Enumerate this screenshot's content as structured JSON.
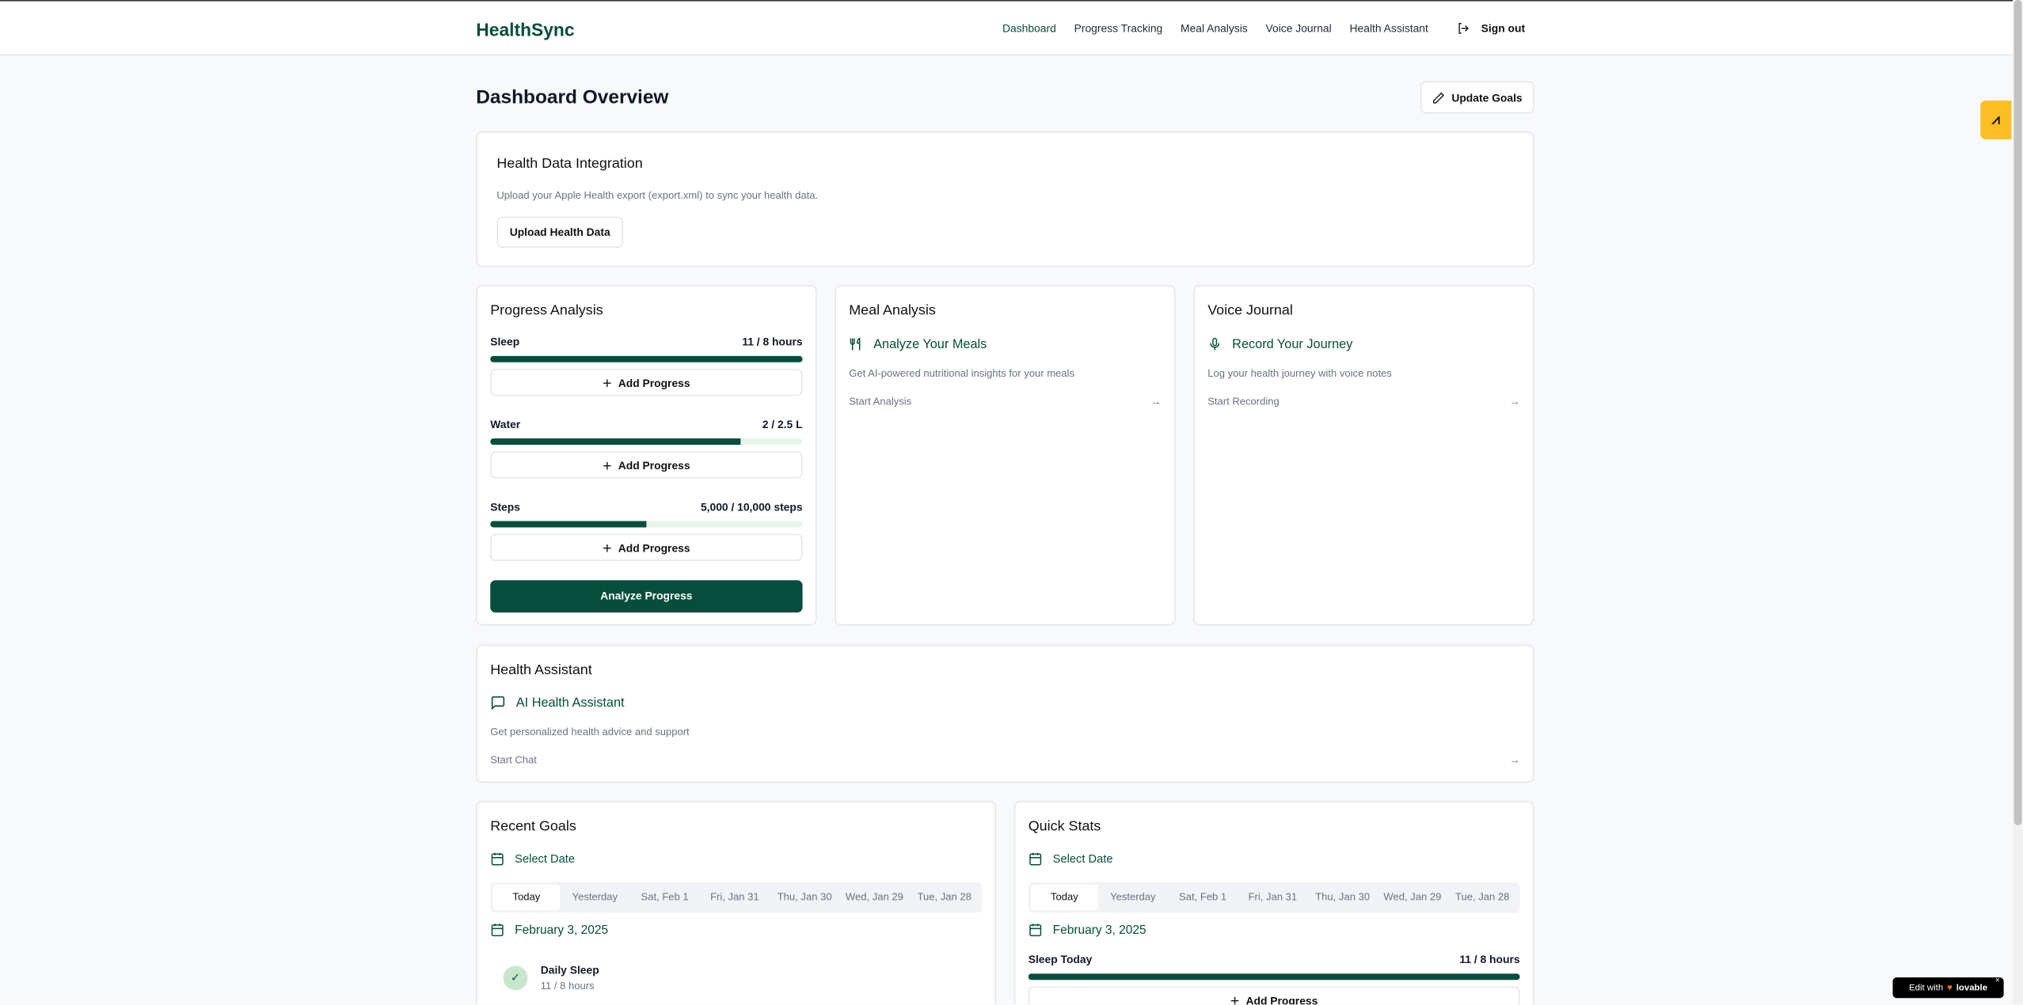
{
  "colors": {
    "brand": "#064e3b",
    "bar_track": "#e8f5ea",
    "accent_float": "#fbbf24"
  },
  "nav": {
    "logo": "HealthSync",
    "items": [
      "Dashboard",
      "Progress Tracking",
      "Meal Analysis",
      "Voice Journal",
      "Health Assistant"
    ],
    "active": "Dashboard",
    "sign_out": "Sign out"
  },
  "header": {
    "title": "Dashboard Overview",
    "update_goals": "Update Goals"
  },
  "integration": {
    "title": "Health Data Integration",
    "description": "Upload your Apple Health export (export.xml) to sync your health data.",
    "button": "Upload Health Data"
  },
  "progress": {
    "title": "Progress Analysis",
    "add_label": "Add Progress",
    "analyze": "Analyze Progress",
    "metrics": [
      {
        "label": "Sleep",
        "value": "11 / 8 hours",
        "percent": 100
      },
      {
        "label": "Water",
        "value": "2 / 2.5 L",
        "percent": 80
      },
      {
        "label": "Steps",
        "value": "5,000 / 10,000 steps",
        "percent": 50
      }
    ]
  },
  "meal": {
    "title": "Meal Analysis",
    "feature": "Analyze Your Meals",
    "description": "Get AI-powered nutritional insights for your meals",
    "link": "Start Analysis"
  },
  "voice": {
    "title": "Voice Journal",
    "feature": "Record Your Journey",
    "description": "Log your health journey with voice notes",
    "link": "Start Recording"
  },
  "assistant": {
    "title": "Health Assistant",
    "feature": "AI Health Assistant",
    "description": "Get personalized health advice and support",
    "link": "Start Chat"
  },
  "dates": [
    "Today",
    "Yesterday",
    "Sat, Feb 1",
    "Fri, Jan 31",
    "Thu, Jan 30",
    "Wed, Jan 29",
    "Tue, Jan 28"
  ],
  "goals": {
    "title": "Recent Goals",
    "select_date": "Select Date",
    "date": "February 3, 2025",
    "items": [
      {
        "name": "Daily Sleep",
        "value": "11 / 8 hours"
      }
    ]
  },
  "stats": {
    "title": "Quick Stats",
    "select_date": "Select Date",
    "date": "February 3, 2025",
    "label": "Sleep Today",
    "value": "11 / 8 hours",
    "percent": 100,
    "add_label": "Add Progress"
  },
  "badge": {
    "text": "Edit with",
    "brand": "lovable"
  }
}
